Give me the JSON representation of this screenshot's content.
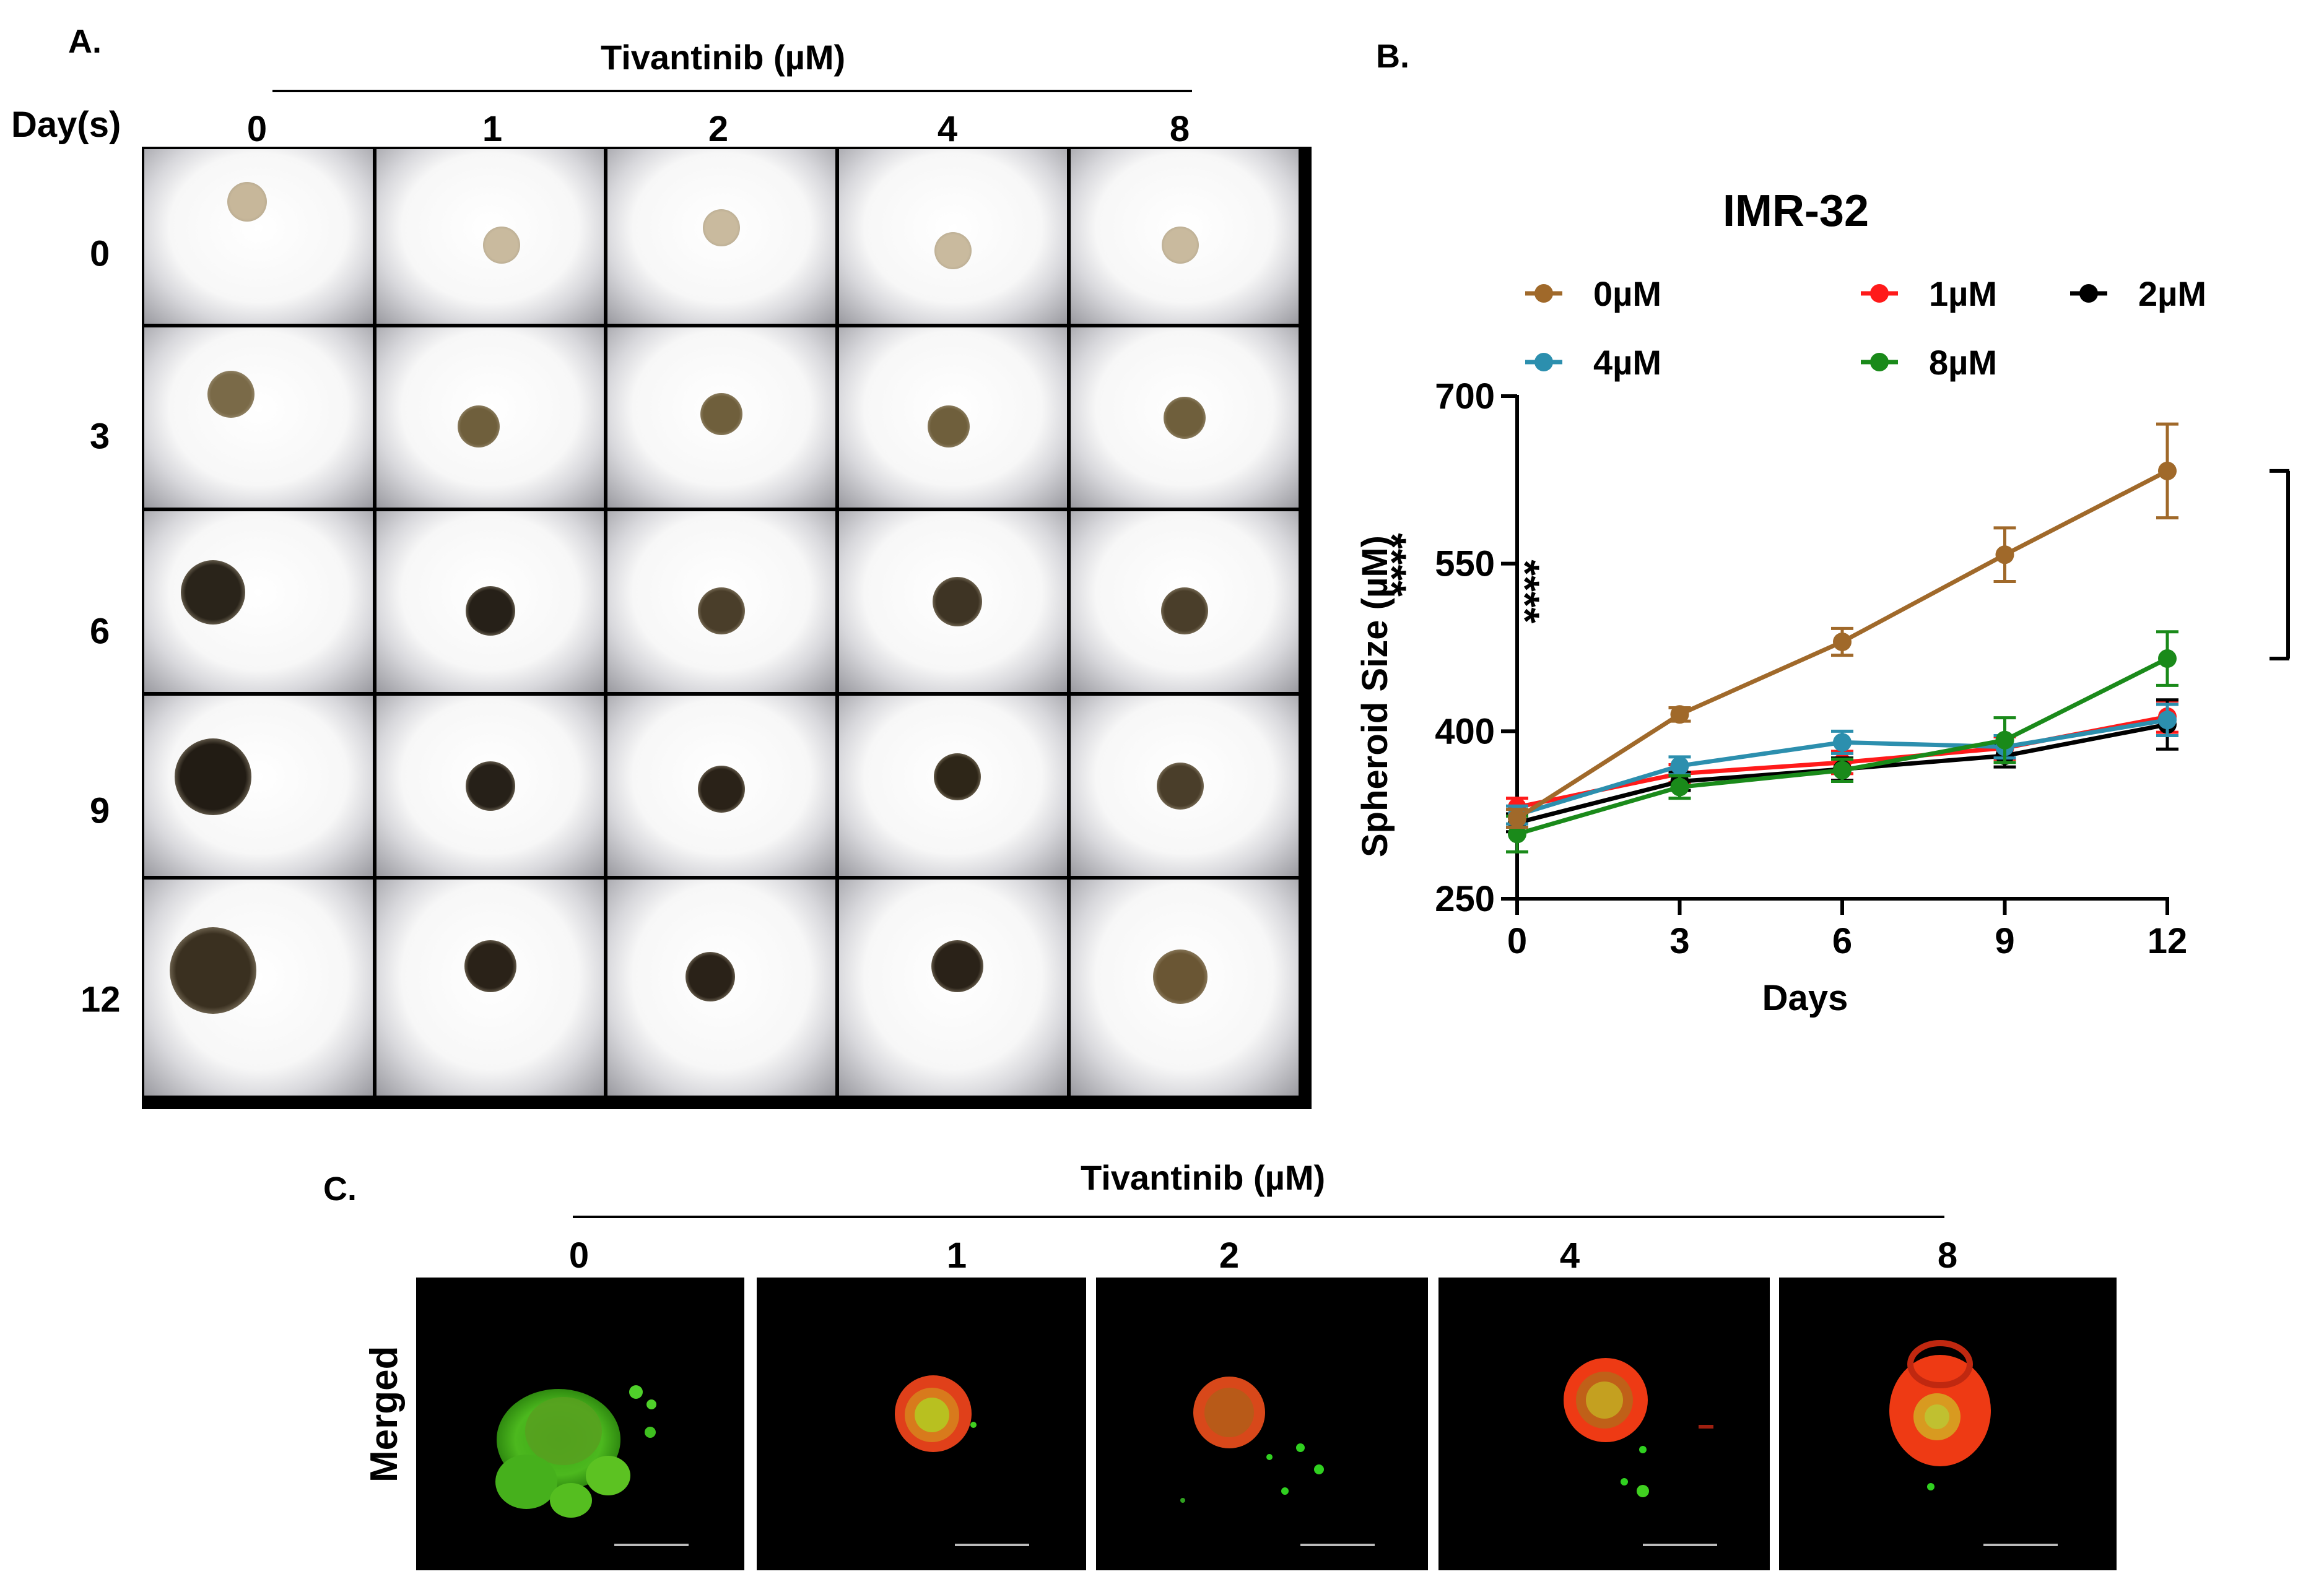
{
  "panelA": {
    "letter": "A.",
    "header": "Tivantinib (µM)",
    "row_axis_label": "Day(s)",
    "columns": [
      "0",
      "1",
      "2",
      "4",
      "8"
    ],
    "rows": [
      "0",
      "3",
      "6",
      "9",
      "12"
    ]
  },
  "panelB": {
    "letter": "B."
  },
  "panelC": {
    "letter": "C.",
    "header": "Tivantinib (µM)",
    "row_label": "Merged",
    "columns": [
      "0",
      "1",
      "2",
      "4",
      "8"
    ]
  },
  "chart_data": {
    "type": "line",
    "title": "IMR-32",
    "xlabel": "Days",
    "ylabel": "Spheroid Size (µM)",
    "x": [
      0,
      3,
      6,
      9,
      12
    ],
    "xticks": [
      "0",
      "3",
      "6",
      "9",
      "12"
    ],
    "yticks": [
      "250",
      "400",
      "550",
      "700"
    ],
    "ylim": [
      250,
      700
    ],
    "xlim": [
      0,
      12
    ],
    "legend_position": "top",
    "series": [
      {
        "name": "0µM",
        "color": "#A0692A",
        "values": [
          322,
          415,
          480,
          558,
          633
        ],
        "errors": [
          8,
          6,
          12,
          24,
          42
        ]
      },
      {
        "name": "1µM",
        "color": "#FF1A1A",
        "values": [
          332,
          362,
          372,
          385,
          413
        ],
        "errors": [
          8,
          8,
          10,
          10,
          14
        ]
      },
      {
        "name": "2µM",
        "color": "#000000",
        "values": [
          318,
          355,
          366,
          378,
          406
        ],
        "errors": [
          8,
          8,
          10,
          10,
          22
        ]
      },
      {
        "name": "4µM",
        "color": "#2C8FAE",
        "values": [
          325,
          369,
          390,
          386,
          410
        ],
        "errors": [
          8,
          8,
          10,
          10,
          14
        ]
      },
      {
        "name": "8µM",
        "color": "#1A8A1A",
        "values": [
          308,
          350,
          365,
          392,
          465
        ],
        "errors": [
          16,
          10,
          10,
          20,
          24
        ]
      }
    ],
    "significance": [
      {
        "label": "****",
        "from": "8µM",
        "to": "0µM"
      },
      {
        "label": "****",
        "from": "2µM",
        "to": "0µM"
      }
    ]
  }
}
